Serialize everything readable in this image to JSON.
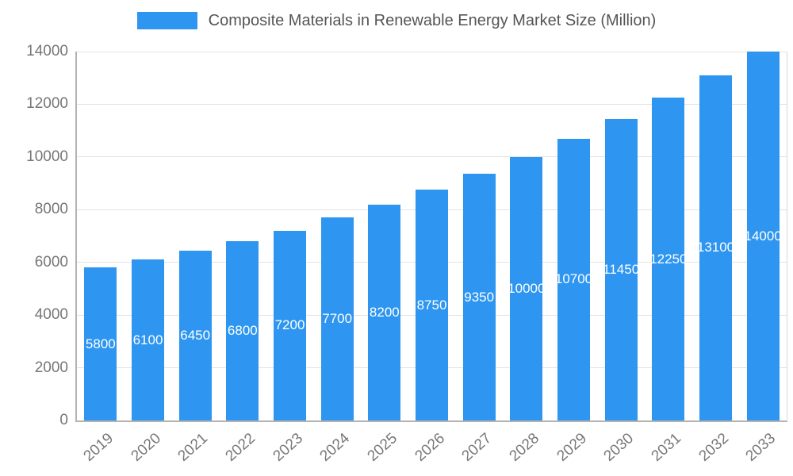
{
  "chart_data": {
    "type": "bar",
    "title": "Composite Materials in Renewable Energy Market Size (Million)",
    "categories": [
      "2019",
      "2020",
      "2021",
      "2022",
      "2023",
      "2024",
      "2025",
      "2026",
      "2027",
      "2028",
      "2029",
      "2030",
      "2031",
      "2032",
      "2033"
    ],
    "values": [
      5800,
      6100,
      6450,
      6800,
      7200,
      7700,
      8200,
      8750,
      9350,
      10000,
      10700,
      11450,
      12250,
      13100,
      14000
    ],
    "xlabel": "",
    "ylabel": "",
    "ylim": [
      0,
      14000
    ],
    "yticks": [
      0,
      2000,
      4000,
      6000,
      8000,
      10000,
      12000,
      14000
    ],
    "grid": true,
    "legend_position": "top",
    "bar_color": "#2e96f0",
    "value_label_color": "#ffffff",
    "tick_label_color": "#777777",
    "grid_color": "#e3e3e3"
  }
}
